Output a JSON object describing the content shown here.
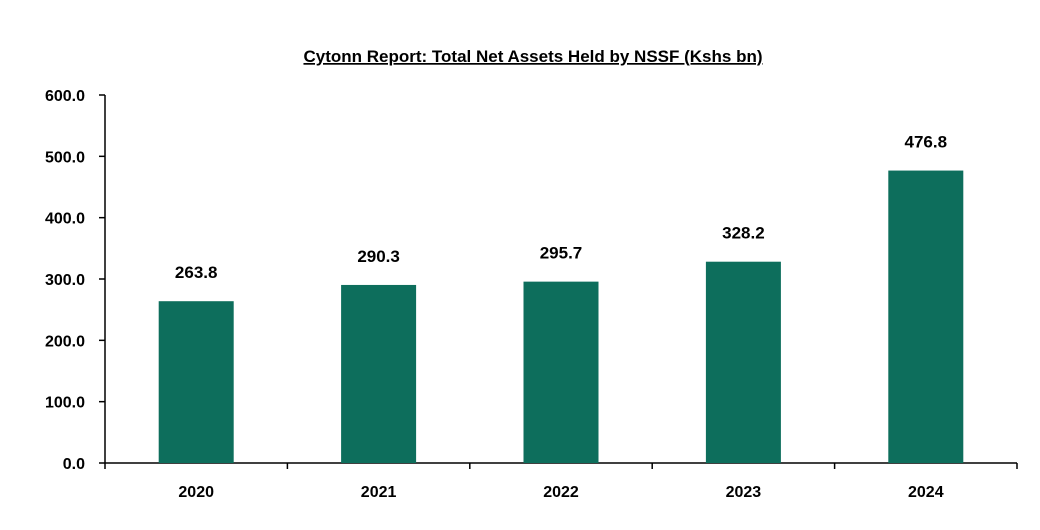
{
  "chart_data": {
    "type": "bar",
    "title": "Cytonn Report: Total Net Assets Held by NSSF (Kshs  bn)",
    "xlabel": "",
    "ylabel": "",
    "categories": [
      "2020",
      "2021",
      "2022",
      "2023",
      "2024"
    ],
    "series": [
      {
        "values": [
          263.8,
          290.3,
          295.7,
          328.2,
          476.8
        ],
        "color": "#0d6e5c"
      }
    ],
    "data_labels": [
      "263.8",
      "290.3",
      "295.7",
      "328.2",
      "476.8"
    ],
    "ylim": [
      0,
      600
    ],
    "yticks": [
      0,
      100,
      200,
      300,
      400,
      500,
      600
    ],
    "ytick_labels": [
      "0.0",
      "100.0",
      "200.0",
      "300.0",
      "400.0",
      "500.0",
      "600.0"
    ],
    "grid": false,
    "legend": "none"
  }
}
